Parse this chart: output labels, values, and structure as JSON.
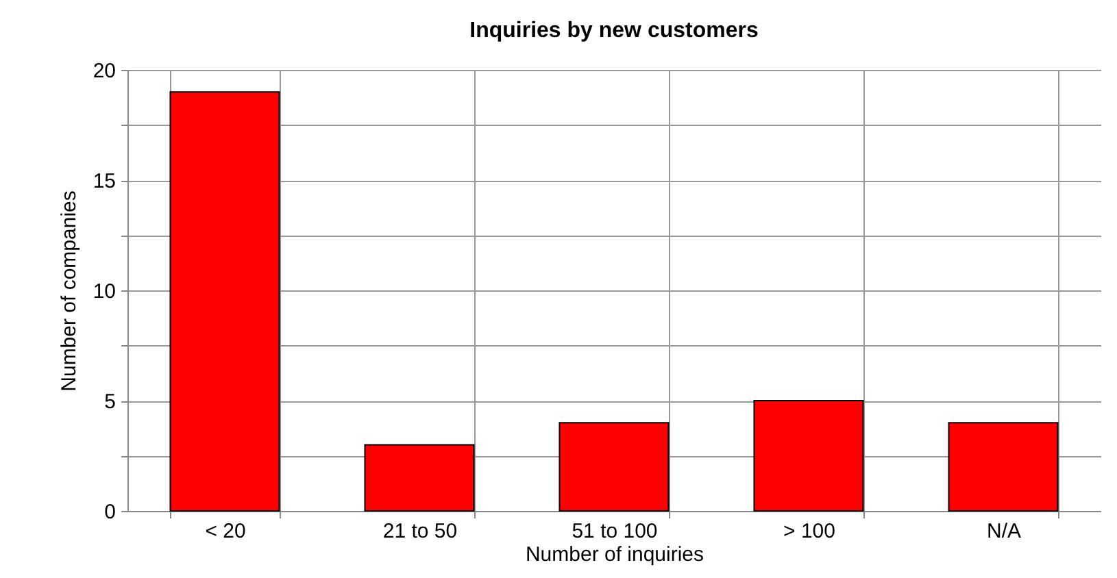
{
  "chart_data": {
    "type": "bar",
    "title": "Inquiries by new customers",
    "xlabel": "Number of inquiries",
    "ylabel": "Number of companies",
    "categories": [
      "< 20",
      "21 to 50",
      "51 to 100",
      "> 100",
      "N/A"
    ],
    "values": [
      19,
      3,
      4,
      5,
      4
    ],
    "color": "#ff0000",
    "ylim": [
      0,
      20
    ],
    "yticks": [
      0,
      {
        "value": 2.5,
        "label": null
      },
      5,
      {
        "value": 7.5,
        "label": null
      },
      10,
      {
        "value": 12.5,
        "label": null
      },
      15,
      {
        "value": 17.5,
        "label": null
      },
      20
    ],
    "grid": true
  }
}
